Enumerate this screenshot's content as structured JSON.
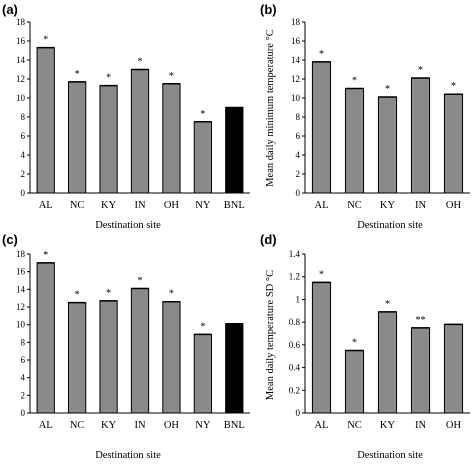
{
  "figure": {
    "colors": {
      "gray_bar": "#8a8a8a",
      "black_bar": "#000000",
      "axis": "#000000"
    }
  },
  "chart_data": [
    {
      "panel": "(a)",
      "type": "bar",
      "categories": [
        "AL",
        "NC",
        "KY",
        "IN",
        "OH",
        "NY",
        "BNL"
      ],
      "values": [
        15.3,
        11.7,
        11.3,
        13.0,
        11.5,
        7.5,
        9.0
      ],
      "markers": [
        "*",
        "*",
        "*",
        "*",
        "*",
        "*",
        ""
      ],
      "bar_colors": [
        "gray",
        "gray",
        "gray",
        "gray",
        "gray",
        "gray",
        "black"
      ],
      "xlabel": "Destination site",
      "ylabel": "",
      "ylim": [
        0,
        18
      ],
      "yticks": [
        0,
        2,
        4,
        6,
        8,
        10,
        12,
        14,
        16,
        18
      ],
      "grid": false
    },
    {
      "panel": "(b)",
      "type": "bar",
      "categories": [
        "AL",
        "NC",
        "KY",
        "IN",
        "OH"
      ],
      "values": [
        13.8,
        11.0,
        10.1,
        12.1,
        10.4
      ],
      "markers": [
        "*",
        "*",
        "*",
        "*",
        "*"
      ],
      "bar_colors": [
        "gray",
        "gray",
        "gray",
        "gray",
        "gray"
      ],
      "xlabel": "Destination site",
      "ylabel": "Mean daily minimum temperature °C",
      "ylim": [
        0,
        18
      ],
      "yticks": [
        0,
        2,
        4,
        6,
        8,
        10,
        12,
        14,
        16,
        18
      ],
      "grid": false
    },
    {
      "panel": "(c)",
      "type": "bar",
      "categories": [
        "AL",
        "NC",
        "KY",
        "IN",
        "OH",
        "NY",
        "BNL"
      ],
      "values": [
        17.0,
        12.5,
        12.7,
        14.1,
        12.6,
        8.9,
        10.1
      ],
      "markers": [
        "*",
        "*",
        "*",
        "*",
        "*",
        "*",
        ""
      ],
      "bar_colors": [
        "gray",
        "gray",
        "gray",
        "gray",
        "gray",
        "gray",
        "black"
      ],
      "xlabel": "Destination site",
      "ylabel": "",
      "ylim": [
        0,
        18
      ],
      "yticks": [
        0,
        2,
        4,
        6,
        8,
        10,
        12,
        14,
        16,
        18
      ],
      "grid": false
    },
    {
      "panel": "(d)",
      "type": "bar",
      "categories": [
        "AL",
        "NC",
        "KY",
        "IN",
        "OH"
      ],
      "values": [
        1.15,
        0.55,
        0.89,
        0.75,
        0.78
      ],
      "markers": [
        "*",
        "*",
        "*",
        "**",
        ""
      ],
      "bar_colors": [
        "gray",
        "gray",
        "gray",
        "gray",
        "gray"
      ],
      "xlabel": "Destination site",
      "ylabel": "Mean daily temperature SD °C",
      "ylim": [
        0,
        1.4
      ],
      "yticks": [
        0,
        0.2,
        0.4,
        0.6,
        0.8,
        1,
        1.2,
        1.4
      ],
      "grid": false
    }
  ]
}
